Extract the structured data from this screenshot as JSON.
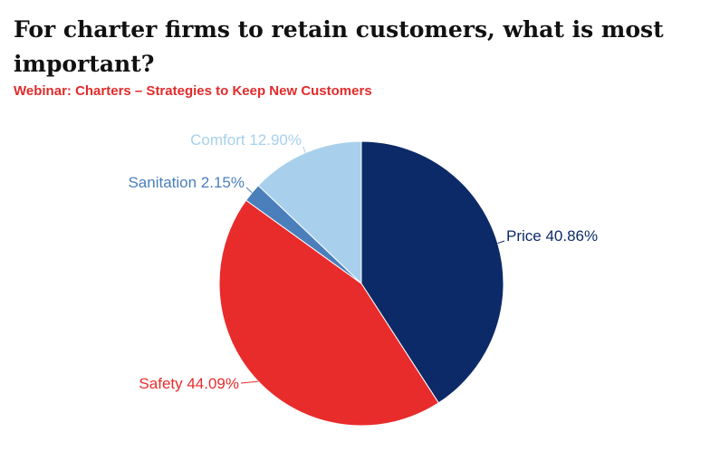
{
  "header": {
    "title": "For charter firms to retain customers, what is most important?",
    "subtitle": "Webinar: Charters – Strategies to Keep New Customers"
  },
  "colors": {
    "title": "#111111",
    "subtitle": "#e12b2b"
  },
  "chart_data": {
    "type": "pie",
    "title": "For charter firms to retain customers, what is most important?",
    "subtitle": "Webinar: Charters – Strategies to Keep New Customers",
    "start": "12 o'clock",
    "direction": "clockwise",
    "slices": [
      {
        "label": "Price",
        "value": 40.86,
        "display": "Price 40.86%",
        "color": "#0d2a68"
      },
      {
        "label": "Safety",
        "value": 44.09,
        "display": "Safety 44.09%",
        "color": "#e82c2b"
      },
      {
        "label": "Sanitation",
        "value": 2.15,
        "display": "Sanitation 2.15%",
        "color": "#4a7fbb"
      },
      {
        "label": "Comfort",
        "value": 12.9,
        "display": "Comfort 12.90%",
        "color": "#a8d0ec"
      }
    ]
  }
}
